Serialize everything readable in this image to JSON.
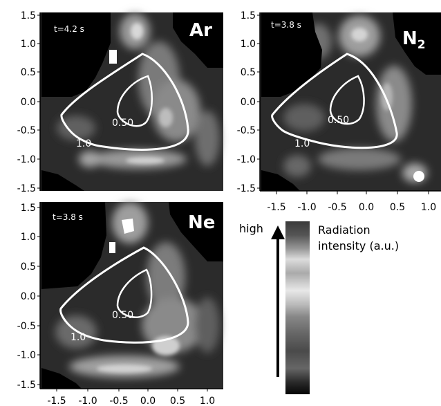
{
  "y_ticks": [
    "1.5",
    "1.0",
    "0.5",
    "0.0",
    "-0.5",
    "-1.0",
    "-1.5"
  ],
  "x_ticks": [
    "-1.5",
    "-1.0",
    "-0.5",
    "0.0",
    "0.5",
    "1.0"
  ],
  "panels": [
    {
      "id": "ar",
      "time": "t=4.2 s",
      "gas": "Ar",
      "gas_sub": "",
      "inner_label": "0.50",
      "outer_label": "1.0"
    },
    {
      "id": "n2",
      "time": "t=3.8 s",
      "gas": "N",
      "gas_sub": "2",
      "inner_label": "0.50",
      "outer_label": "1.0"
    },
    {
      "id": "ne",
      "time": "t=3.8 s",
      "gas": "Ne",
      "gas_sub": "",
      "inner_label": "0.50",
      "outer_label": "1.0"
    }
  ],
  "legend": {
    "high_label": "high",
    "title_line1": "Radiation",
    "title_line2": "intensity (a.u.)"
  },
  "colors": {
    "map_background": "#2b2b2b",
    "contour": "#ffffff",
    "hot_spot": "#ffffff"
  }
}
